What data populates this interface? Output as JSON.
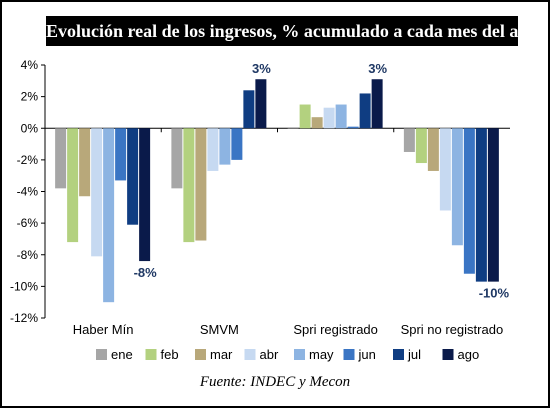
{
  "chart_data": {
    "type": "bar",
    "title": "Evolución real de los ingresos, % acumulado a cada mes del año",
    "source": "Fuente: INDEC y Mecon",
    "categories": [
      "Haber Mín",
      "SMVM",
      "Spri registrado",
      "Spri no registrado"
    ],
    "ylim": [
      -12,
      4
    ],
    "yticks": [
      4,
      2,
      0,
      -2,
      -4,
      -6,
      -8,
      -10,
      -12
    ],
    "ytick_labels": [
      "4%",
      "2%",
      "0%",
      "-2%",
      "-4%",
      "-6%",
      "-8%",
      "-10%",
      "-12%"
    ],
    "grid": false,
    "legend_position": "bottom",
    "series": [
      {
        "name": "ene",
        "color": "#a6a6a6",
        "values": [
          -3.8,
          -3.8,
          0.0,
          -1.5
        ]
      },
      {
        "name": "feb",
        "color": "#b3d17f",
        "values": [
          -7.2,
          -7.2,
          1.5,
          -2.2
        ]
      },
      {
        "name": "mar",
        "color": "#b8a87a",
        "values": [
          -4.3,
          -7.1,
          0.7,
          -2.7
        ]
      },
      {
        "name": "abr",
        "color": "#c6d9f1",
        "values": [
          -8.1,
          -2.7,
          1.3,
          -5.2
        ]
      },
      {
        "name": "may",
        "color": "#8db4e2",
        "values": [
          -11.0,
          -2.3,
          1.5,
          -7.4
        ]
      },
      {
        "name": "jun",
        "color": "#3a75c4",
        "values": [
          -3.3,
          -2.0,
          0.1,
          -9.2
        ]
      },
      {
        "name": "jul",
        "color": "#0f3d82",
        "values": [
          -6.1,
          2.4,
          2.2,
          -9.7
        ]
      },
      {
        "name": "ago",
        "color": "#0a1a4a",
        "values": [
          -8.4,
          3.1,
          3.1,
          -9.7
        ]
      }
    ],
    "annotations": [
      {
        "category": "Haber Mín",
        "text": "-8%",
        "value": -8.4
      },
      {
        "category": "SMVM",
        "text": "3%",
        "value": 3.1
      },
      {
        "category": "Spri registrado",
        "text": "3%",
        "value": 3.1
      },
      {
        "category": "Spri no registrado",
        "text": "-10%",
        "value": -9.7
      }
    ]
  }
}
